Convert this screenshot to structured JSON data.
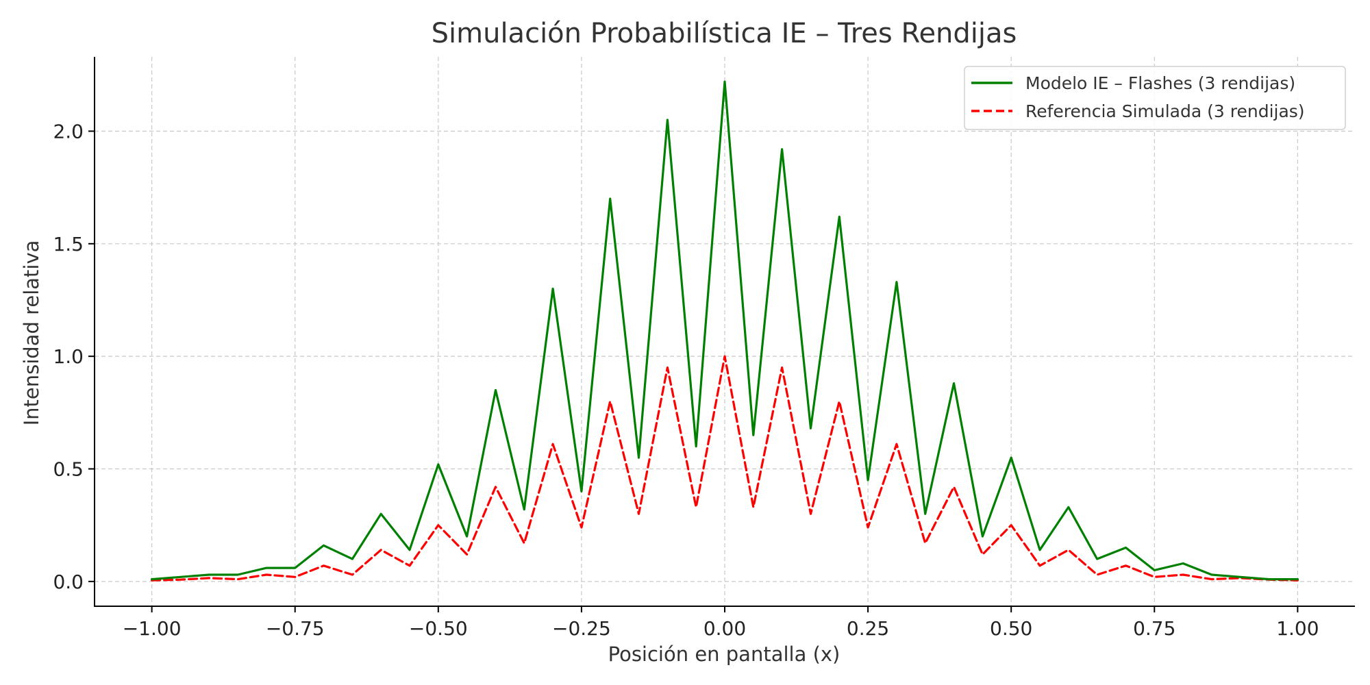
{
  "chart_data": {
    "type": "line",
    "title": "Simulación Probabilística IE – Tres Rendijas",
    "xlabel": "Posición en pantalla (x)",
    "ylabel": "Intensidad relativa",
    "xlim": [
      -1.1,
      1.1
    ],
    "ylim": [
      -0.11,
      2.33
    ],
    "x_ticks": [
      -1.0,
      -0.75,
      -0.5,
      -0.25,
      0.0,
      0.25,
      0.5,
      0.75,
      1.0
    ],
    "x_tick_labels": [
      "−1.00",
      "−0.75",
      "−0.50",
      "−0.25",
      "0.00",
      "0.25",
      "0.50",
      "0.75",
      "1.00"
    ],
    "y_ticks": [
      0.0,
      0.5,
      1.0,
      1.5,
      2.0
    ],
    "y_tick_labels": [
      "0.0",
      "0.5",
      "1.0",
      "1.5",
      "2.0"
    ],
    "grid": true,
    "legend_position": "top-right",
    "series": [
      {
        "name": "Modelo IE – Flashes (3 rendijas)",
        "color": "#008000",
        "style": "solid",
        "x": [
          -1.0,
          -0.95,
          -0.9,
          -0.85,
          -0.8,
          -0.75,
          -0.7,
          -0.65,
          -0.6,
          -0.55,
          -0.5,
          -0.45,
          -0.4,
          -0.35,
          -0.3,
          -0.25,
          -0.2,
          -0.15,
          -0.1,
          -0.05,
          0.0,
          0.05,
          0.1,
          0.15,
          0.2,
          0.25,
          0.3,
          0.35,
          0.4,
          0.45,
          0.5,
          0.55,
          0.6,
          0.65,
          0.7,
          0.75,
          0.8,
          0.85,
          0.9,
          0.95,
          1.0
        ],
        "y": [
          0.01,
          0.02,
          0.03,
          0.03,
          0.06,
          0.06,
          0.16,
          0.1,
          0.3,
          0.14,
          0.52,
          0.2,
          0.85,
          0.32,
          1.3,
          0.4,
          1.7,
          0.55,
          2.05,
          0.6,
          2.22,
          0.65,
          1.92,
          0.68,
          1.62,
          0.45,
          1.33,
          0.3,
          0.88,
          0.2,
          0.55,
          0.14,
          0.33,
          0.1,
          0.15,
          0.05,
          0.08,
          0.03,
          0.02,
          0.01,
          0.01
        ]
      },
      {
        "name": "Referencia Simulada (3 rendijas)",
        "color": "#ff0000",
        "style": "dashed",
        "x": [
          -1.0,
          -0.95,
          -0.9,
          -0.85,
          -0.8,
          -0.75,
          -0.7,
          -0.65,
          -0.6,
          -0.55,
          -0.5,
          -0.45,
          -0.4,
          -0.35,
          -0.3,
          -0.25,
          -0.2,
          -0.15,
          -0.1,
          -0.05,
          0.0,
          0.05,
          0.1,
          0.15,
          0.2,
          0.25,
          0.3,
          0.35,
          0.4,
          0.45,
          0.5,
          0.55,
          0.6,
          0.65,
          0.7,
          0.75,
          0.8,
          0.85,
          0.9,
          0.95,
          1.0
        ],
        "y": [
          0.005,
          0.008,
          0.015,
          0.01,
          0.03,
          0.02,
          0.07,
          0.03,
          0.14,
          0.07,
          0.25,
          0.12,
          0.42,
          0.17,
          0.61,
          0.24,
          0.8,
          0.3,
          0.95,
          0.33,
          1.0,
          0.33,
          0.95,
          0.3,
          0.8,
          0.24,
          0.61,
          0.17,
          0.42,
          0.12,
          0.25,
          0.07,
          0.14,
          0.03,
          0.07,
          0.02,
          0.03,
          0.01,
          0.015,
          0.008,
          0.005
        ]
      }
    ]
  }
}
